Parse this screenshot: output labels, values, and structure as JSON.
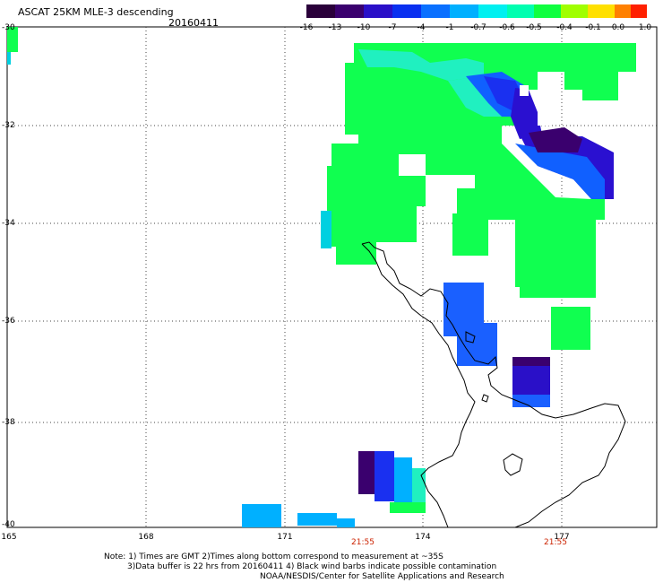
{
  "header": {
    "title": "ASCAT 25KM MLE-3 descending",
    "date": "20160411"
  },
  "colorbar": {
    "labels": [
      "-16",
      "-13",
      "-10",
      "-7",
      "-4",
      "-1",
      "-0.7",
      "-0.6",
      "-0.5",
      "-0.4",
      "-0.1",
      "0.0",
      "1.0"
    ],
    "colors": [
      "#2a003a",
      "#3a006e",
      "#2a10c8",
      "#0a30f0",
      "#0a70ff",
      "#00b0ff",
      "#00f0f0",
      "#00ffb0",
      "#10ff40",
      "#a0ff00",
      "#ffe000",
      "#ff8000",
      "#ff2000"
    ]
  },
  "map": {
    "lat_labels": [
      "-30",
      "-32",
      "-34",
      "-36",
      "-38",
      "-40"
    ],
    "lon_labels": [
      "165",
      "168",
      "171",
      "174",
      "177"
    ],
    "time_labels": [
      "21:55",
      "21:55"
    ]
  },
  "notes": {
    "line1": "Note: 1) Times are GMT 2)Times along bottom correspond to measurement at ~35S",
    "line2": "3)Data buffer is 22 hrs from 20160411 4) Black wind barbs indicate possible contamination",
    "line3": "NOAA/NESDIS/Center for Satellite Applications and Research"
  }
}
